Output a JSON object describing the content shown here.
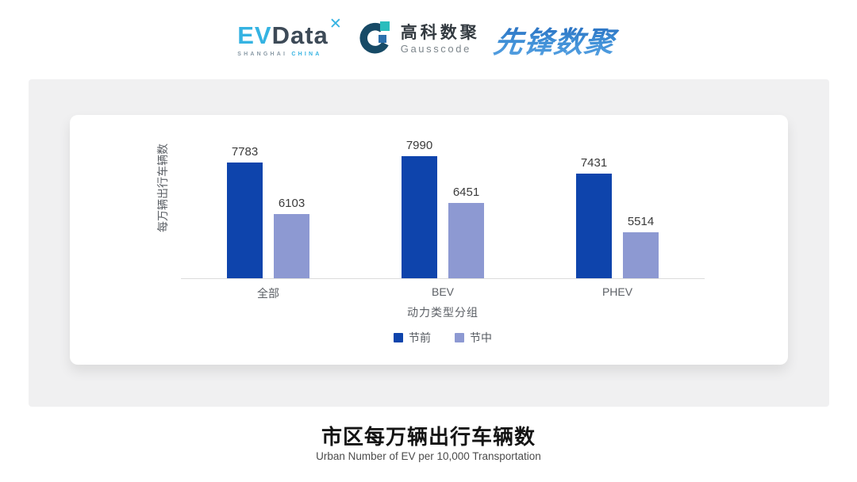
{
  "header": {
    "evdata": {
      "ev": "EV",
      "data": "Data",
      "mark": "✕",
      "sub_left": "SHANGHAI",
      "sub_right": "CHINA"
    },
    "gausscode": {
      "cn": "高科数聚",
      "en": "Gausscode"
    },
    "pioneer": {
      "text": "先锋数聚"
    }
  },
  "chart_data": {
    "type": "bar",
    "title": "市区每万辆出行车辆数",
    "subtitle": "Urban Number of EV per 10,000 Transportation",
    "categories": [
      "全部",
      "BEV",
      "PHEV"
    ],
    "series": [
      {
        "name": "节前",
        "color": "#0e44ac",
        "values": [
          7783,
          7990,
          7431
        ]
      },
      {
        "name": "节中",
        "color": "#8d99d2",
        "values": [
          6103,
          6451,
          5514
        ]
      }
    ],
    "xlabel": "动力类型分组",
    "ylabel": "每万辆出行车辆数",
    "ylim": [
      4000,
      8300
    ],
    "grid": false,
    "legend_position": "bottom",
    "value_labels": true
  },
  "footer": {
    "title": "市区每万辆出行车辆数",
    "subtitle": "Urban Number of EV per 10,000 Transportation"
  },
  "colors": {
    "panel_bg": "#f0f0f1",
    "card_bg": "#ffffff",
    "axis_line": "#dcdcdc",
    "brand_cyan": "#35b3e2",
    "brand_navy": "#174a66",
    "brand_teal": "#2abdbd",
    "brand_blue": "#2c6fac",
    "pioneer_blue": "#2b79c8"
  }
}
